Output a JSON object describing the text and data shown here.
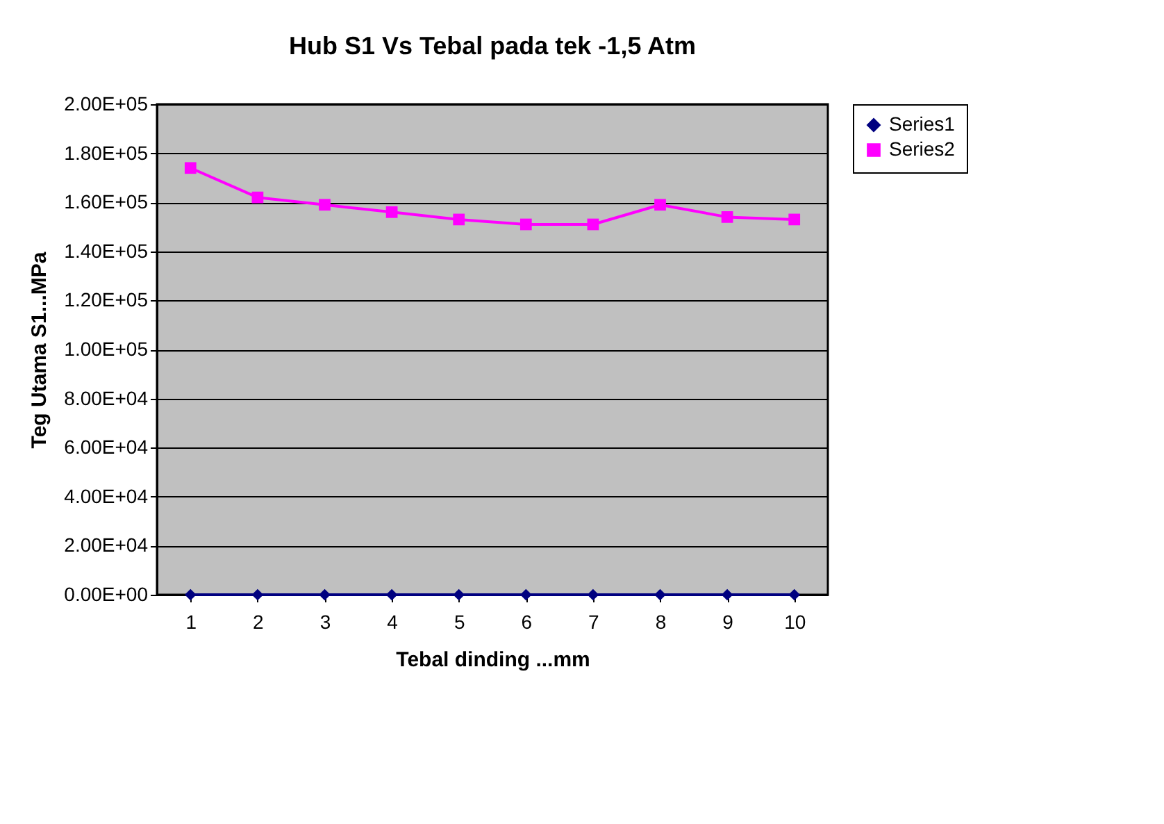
{
  "chart_data": {
    "type": "line",
    "title": "Hub S1  Vs Tebal  pada tek -1,5 Atm",
    "xlabel": "Tebal dinding ...mm",
    "ylabel": "Teg Utama S1...MPa",
    "categories": [
      "1",
      "2",
      "3",
      "4",
      "5",
      "6",
      "7",
      "8",
      "9",
      "10"
    ],
    "series": [
      {
        "name": "Series1",
        "color": "#000080",
        "marker": "diamond",
        "values": [
          0,
          0,
          0,
          0,
          0,
          0,
          0,
          0,
          0,
          0
        ]
      },
      {
        "name": "Series2",
        "color": "#ff00ff",
        "marker": "square",
        "values": [
          174000,
          162000,
          159000,
          156000,
          153000,
          151000,
          151000,
          159000,
          154000,
          153000
        ]
      }
    ],
    "ylim": [
      0,
      200000
    ],
    "yticks": [
      {
        "value": 0,
        "label": "0.00E+00"
      },
      {
        "value": 20000,
        "label": "2.00E+04"
      },
      {
        "value": 40000,
        "label": "4.00E+04"
      },
      {
        "value": 60000,
        "label": "6.00E+04"
      },
      {
        "value": 80000,
        "label": "8.00E+04"
      },
      {
        "value": 100000,
        "label": "1.00E+05"
      },
      {
        "value": 120000,
        "label": "1.20E+05"
      },
      {
        "value": 140000,
        "label": "1.40E+05"
      },
      {
        "value": 160000,
        "label": "1.60E+05"
      },
      {
        "value": 180000,
        "label": "1.80E+05"
      },
      {
        "value": 200000,
        "label": "2.00E+05"
      }
    ],
    "grid": "y",
    "legend": "right",
    "line_style": "solid"
  }
}
